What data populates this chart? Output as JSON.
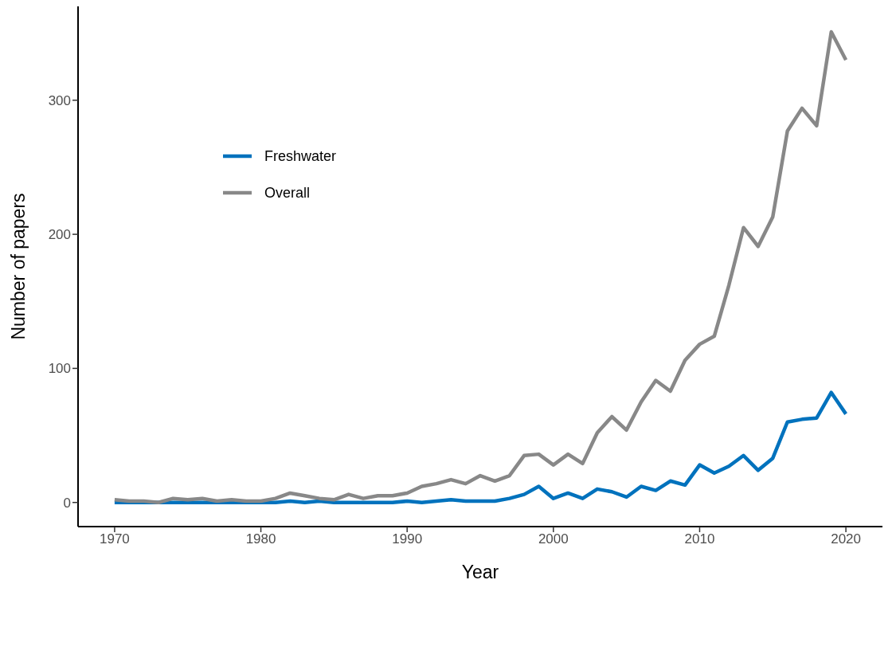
{
  "chart_data": {
    "type": "line",
    "xlabel": "Year",
    "ylabel": "Number of papers",
    "x": [
      1970,
      1971,
      1972,
      1973,
      1974,
      1975,
      1976,
      1977,
      1978,
      1979,
      1980,
      1981,
      1982,
      1983,
      1984,
      1985,
      1986,
      1987,
      1988,
      1989,
      1990,
      1991,
      1992,
      1993,
      1994,
      1995,
      1996,
      1997,
      1998,
      1999,
      2000,
      2001,
      2002,
      2003,
      2004,
      2005,
      2006,
      2007,
      2008,
      2009,
      2010,
      2011,
      2012,
      2013,
      2014,
      2015,
      2016,
      2017,
      2018,
      2019,
      2020
    ],
    "series": [
      {
        "name": "Freshwater",
        "color": "#0072bd",
        "values": [
          0,
          0,
          0,
          0,
          0,
          0,
          0,
          0,
          0,
          0,
          0,
          0,
          1,
          0,
          1,
          0,
          0,
          0,
          0,
          0,
          1,
          0,
          1,
          2,
          1,
          1,
          1,
          3,
          6,
          12,
          3,
          7,
          3,
          10,
          8,
          4,
          12,
          9,
          16,
          13,
          28,
          22,
          27,
          35,
          24,
          33,
          60,
          62,
          63,
          82,
          66
        ]
      },
      {
        "name": "Overall",
        "color": "#888888",
        "values": [
          2,
          1,
          1,
          0,
          3,
          2,
          3,
          1,
          2,
          1,
          1,
          3,
          7,
          5,
          3,
          2,
          6,
          3,
          5,
          5,
          7,
          12,
          14,
          17,
          14,
          20,
          16,
          20,
          35,
          36,
          28,
          36,
          29,
          52,
          64,
          54,
          75,
          91,
          83,
          106,
          118,
          124,
          162,
          205,
          191,
          213,
          277,
          294,
          281,
          351,
          330
        ]
      }
    ],
    "xlim": [
      1967.5,
      2022.5
    ],
    "xticks": [
      1970,
      1980,
      1990,
      2000,
      2010,
      2020
    ],
    "ylim": [
      -18,
      370
    ],
    "yticks": [
      0,
      100,
      200,
      300
    ],
    "grid": false,
    "legend": "top left",
    "marker": "none",
    "line_style": "solid"
  }
}
